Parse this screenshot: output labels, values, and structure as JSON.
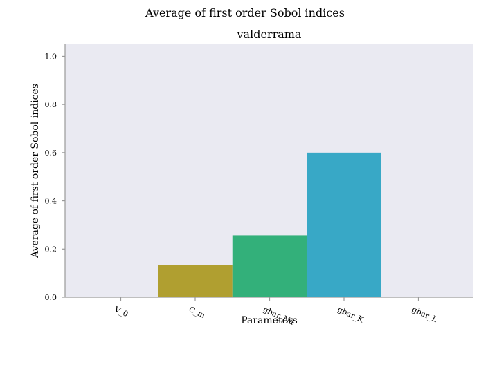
{
  "chart_data": {
    "type": "bar",
    "suptitle": "Average of first order Sobol indices",
    "title": "valderrama",
    "xlabel": "Parameters",
    "ylabel": "Average of first order Sobol indices",
    "categories": [
      "V_0",
      "C_m",
      "gbar_Na",
      "gbar_K",
      "gbar_L"
    ],
    "values": [
      0.0,
      0.133,
      0.257,
      0.6,
      0.0
    ],
    "colors": [
      "#e0807a",
      "#b09f30",
      "#33b07a",
      "#38a8c6",
      "#c39ce0"
    ],
    "ylim": [
      0,
      1.05
    ],
    "yticks": [
      "0.0",
      "0.2",
      "0.4",
      "0.6",
      "0.8",
      "1.0"
    ],
    "ytick_values": [
      0,
      0.2,
      0.4,
      0.6,
      0.8,
      1.0
    ],
    "background": "#eaeaf2",
    "axis_color": "#999999",
    "grid": false,
    "legend": "none"
  }
}
